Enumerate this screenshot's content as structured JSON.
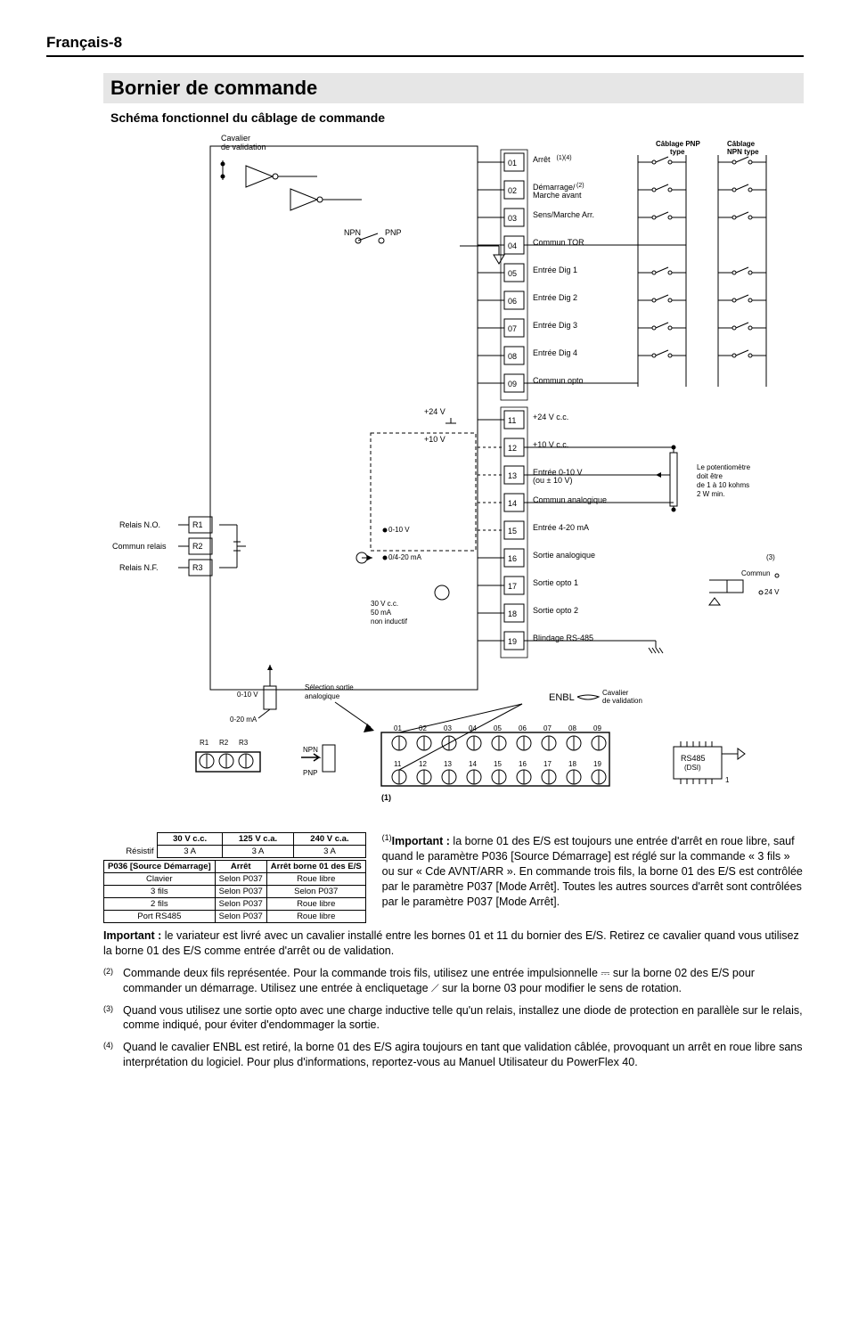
{
  "header": {
    "left": "Français-8"
  },
  "title": "Bornier de commande",
  "subhead": "Schéma fonctionnel du câblage de commande",
  "diagram": {
    "top_labels": {
      "cavalier": "Cavalier",
      "de_validation": "de validation",
      "pnp": "Câblage PNP",
      "pnp2": "type",
      "npn": "Câblage",
      "npn2": "NPN type"
    },
    "npn_label": "NPN",
    "pnp_label": "PNP",
    "terminals": [
      {
        "n": "01",
        "label": "Arrêt",
        "sup": "(1)(4)"
      },
      {
        "n": "02",
        "label": "Démarrage/",
        "label2": "Marche avant",
        "sup": "(2)"
      },
      {
        "n": "03",
        "label": "Sens/Marche Arr."
      },
      {
        "n": "04",
        "label": "Commun TOR"
      },
      {
        "n": "05",
        "label": "Entrée Dig 1"
      },
      {
        "n": "06",
        "label": "Entrée Dig 2"
      },
      {
        "n": "07",
        "label": "Entrée Dig 3"
      },
      {
        "n": "08",
        "label": "Entrée Dig 4"
      },
      {
        "n": "09",
        "label": "Commun opto"
      },
      {
        "n": "11",
        "label": "+24 V c.c."
      },
      {
        "n": "12",
        "label": "+10 V c.c."
      },
      {
        "n": "13",
        "label": "Entrée 0-10 V",
        "label2": "(ou ± 10 V)"
      },
      {
        "n": "14",
        "label": "Commun analogique"
      },
      {
        "n": "15",
        "label": "Entrée 4-20 mA"
      },
      {
        "n": "16",
        "label": "Sortie analogique"
      },
      {
        "n": "17",
        "label": "Sortie opto 1"
      },
      {
        "n": "18",
        "label": "Sortie opto 2"
      },
      {
        "n": "19",
        "label": "Blindage RS-485"
      }
    ],
    "pot_note": [
      "Le potentiomètre",
      "doit être",
      "de 1 à 10 kohms",
      "2 W min."
    ],
    "sup3": "(3)",
    "commun": "Commun",
    "v24": "24 V",
    "plus24": "+24 V",
    "plus10": "+10 V",
    "rnl": {
      "r1": "R1",
      "r2": "R2",
      "r3": "R3"
    },
    "relay_labels": {
      "no": "Relais N.O.",
      "com": "Commun relais",
      "nf": "Relais N.F."
    },
    "an_sel": "Sélection sortie",
    "an_sel2": "analogique",
    "enbl": "ENBL",
    "cav_val": "Cavalier",
    "cav_val2": "de validation",
    "rs485": "RS485",
    "dsi": "(DSI)",
    "one": "1",
    "npn2": "NPN",
    "pnp2": "PNP",
    "v010": "0-10 V",
    "ma020": "0-20 mA",
    "line_010": "0-10 V",
    "line_0420": "0/4-20 mA",
    "opto_spec": [
      "30 V c.c.",
      "50 mA",
      "non inductif"
    ],
    "note1_ref": "(1)",
    "top_nums": [
      "01",
      "02",
      "03",
      "04",
      "05",
      "06",
      "07",
      "08",
      "09"
    ],
    "bot_nums": [
      "11",
      "12",
      "13",
      "14",
      "15",
      "16",
      "17",
      "18",
      "19"
    ]
  },
  "rating_table": {
    "headers": [
      "",
      "30 V c.c.",
      "125 V c.a.",
      "240 V c.a."
    ],
    "rows": [
      [
        "Résistif",
        "3 A",
        "3 A",
        "3 A"
      ]
    ]
  },
  "source_table": {
    "headers": [
      "P036 [Source Démarrage]",
      "Arrêt",
      "Arrêt borne 01 des E/S"
    ],
    "rows": [
      [
        "Clavier",
        "Selon P037",
        "Roue libre"
      ],
      [
        "3 fils",
        "Selon P037",
        "Selon P037"
      ],
      [
        "2 fils",
        "Selon P037",
        "Roue libre"
      ],
      [
        "Port RS485",
        "Selon P037",
        "Roue libre"
      ]
    ]
  },
  "note1": {
    "sup": "(1)",
    "bold": "Important :",
    "text": " la borne 01 des E/S est toujours une entrée d'arrêt en roue libre, sauf quand le paramètre P036 [Source Démarrage] est réglé sur la commande « 3 fils » ou sur « Cde AVNT/ARR ». En commande trois fils, la borne 01 des E/S est contrôlée par le paramètre P037 [Mode Arrêt]. Toutes les autres sources d'arrêt sont contrôlées par le paramètre P037 [Mode Arrêt]."
  },
  "important_line": {
    "bold": "Important :",
    "text": " le variateur est livré avec un cavalier installé entre les bornes 01 et 11 du bornier des E/S. Retirez ce cavalier quand vous utilisez la borne 01 des E/S comme entrée d'arrêt ou de validation."
  },
  "footnotes": [
    {
      "sup": "(2)",
      "text": "Commande deux fils représentée. Pour la commande trois fils, utilisez une entrée impulsionnelle ⎓ sur la borne 02 des E/S pour commander un démarrage. Utilisez une entrée à encliquetage ⟋ sur la borne 03 pour modifier le sens de rotation."
    },
    {
      "sup": "(3)",
      "text": "Quand vous utilisez une sortie opto avec une charge inductive telle qu'un relais, installez une diode de protection en parallèle sur le relais, comme indiqué, pour éviter d'endommager la sortie."
    },
    {
      "sup": "(4)",
      "text": "Quand le cavalier ENBL est retiré, la borne 01 des E/S agira toujours en tant que validation câblée, provoquant un arrêt en roue libre sans interprétation du logiciel. Pour plus d'informations, reportez-vous au Manuel Utilisateur du PowerFlex 40."
    }
  ],
  "colors": {
    "bg": "#ffffff",
    "text": "#000000",
    "grey": "#e6e6e6",
    "line": "#000000"
  }
}
